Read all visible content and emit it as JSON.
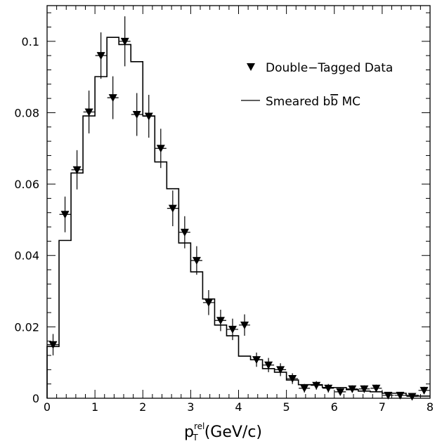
{
  "chart_data": {
    "type": "step-histogram-with-points",
    "x_axis": {
      "label_main": "p",
      "label_sup": "rel",
      "label_sub": "T",
      "label_unit": "(GeV/c)",
      "range": [
        0,
        8
      ],
      "ticks": [
        "0",
        "1",
        "2",
        "3",
        "4",
        "5",
        "6",
        "7",
        "8"
      ]
    },
    "y_axis": {
      "range": [
        0,
        0.11
      ],
      "ticks": [
        "0",
        "0.02",
        "0.04",
        "0.06",
        "0.08",
        "0.1"
      ]
    },
    "legend": {
      "placement": "top-right",
      "data_label": "Double−Tagged Data",
      "mc_label_prefix": "Smeared b",
      "mc_label_bbar": "b",
      "mc_label_suffix": " MC"
    },
    "series": [
      {
        "name": "Smeared bb MC",
        "kind": "step",
        "bin_edges": [
          0.0,
          0.25,
          0.5,
          0.75,
          1.0,
          1.25,
          1.5,
          1.75,
          2.0,
          2.25,
          2.5,
          2.75,
          3.0,
          3.25,
          3.5,
          3.75,
          4.0,
          4.25,
          4.5,
          4.75,
          5.0,
          5.25,
          5.5,
          5.75,
          6.0,
          6.25,
          6.5,
          6.75,
          7.0,
          7.25,
          7.5,
          7.75,
          8.0
        ],
        "values": [
          0.0145,
          0.0442,
          0.0631,
          0.0791,
          0.0901,
          0.1011,
          0.0991,
          0.0943,
          0.0791,
          0.0662,
          0.0587,
          0.0435,
          0.0354,
          0.0278,
          0.0205,
          0.0175,
          0.0118,
          0.0108,
          0.0083,
          0.0073,
          0.0051,
          0.0038,
          0.0038,
          0.003,
          0.003,
          0.0024,
          0.002,
          0.0018,
          0.0014,
          0.0014,
          0.0008,
          0.0006
        ]
      },
      {
        "name": "Double−Tagged Data",
        "kind": "points",
        "x": [
          0.125,
          0.375,
          0.625,
          0.875,
          1.125,
          1.375,
          1.625,
          1.875,
          2.125,
          2.375,
          2.625,
          2.875,
          3.125,
          3.375,
          3.625,
          3.875,
          4.125,
          4.375,
          4.625,
          4.875,
          5.125,
          5.375,
          5.625,
          5.875,
          6.125,
          6.375,
          6.625,
          6.875,
          7.125,
          7.375,
          7.625,
          7.875
        ],
        "y": [
          0.015,
          0.0515,
          0.064,
          0.0802,
          0.096,
          0.0842,
          0.1,
          0.0795,
          0.079,
          0.07,
          0.0532,
          0.0465,
          0.0386,
          0.0268,
          0.0218,
          0.0193,
          0.0205,
          0.0108,
          0.0093,
          0.008,
          0.0055,
          0.0028,
          0.0036,
          0.0028,
          0.0018,
          0.0026,
          0.0026,
          0.0028,
          0.0008,
          0.0008,
          0.0005,
          0.0022
        ],
        "err": [
          0.003,
          0.005,
          0.0055,
          0.006,
          0.0065,
          0.006,
          0.007,
          0.006,
          0.006,
          0.0055,
          0.005,
          0.0045,
          0.004,
          0.0035,
          0.003,
          0.003,
          0.003,
          0.002,
          0.002,
          0.0018,
          0.0015,
          0.0012,
          0.0012,
          0.0012,
          0.001,
          0.001,
          0.001,
          0.001,
          0.0007,
          0.0007,
          0.0006,
          0.001
        ]
      }
    ]
  }
}
